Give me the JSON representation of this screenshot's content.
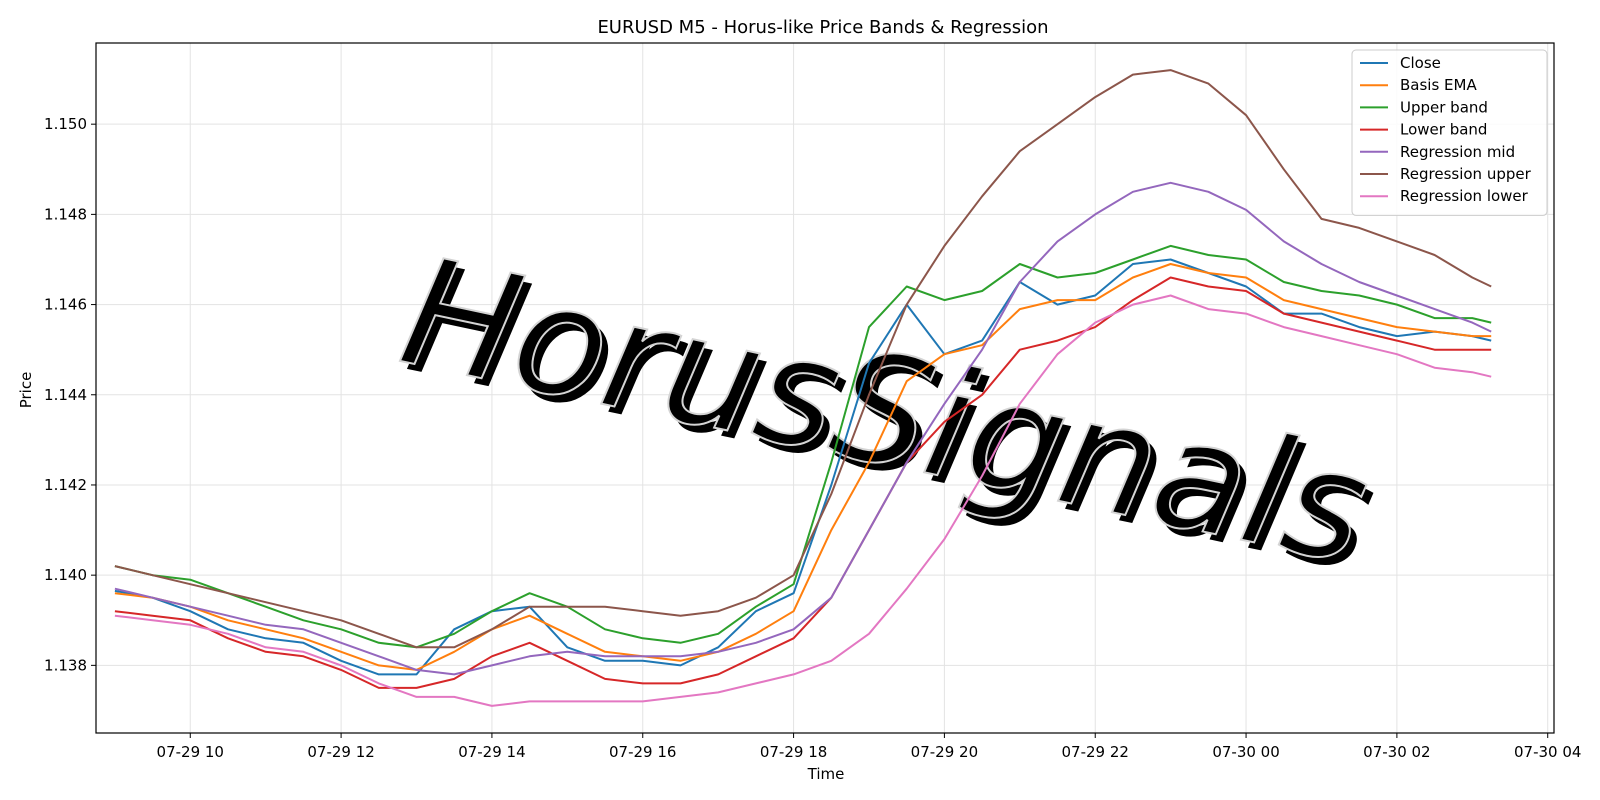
{
  "chart_data": {
    "type": "line",
    "title": "EURUSD M5 - Horus-like Price Bands & Regression",
    "xlabel": "Time",
    "ylabel": "Price",
    "watermark": "HorusSignals",
    "grid": true,
    "legend_position": "top-right",
    "xlim": [
      "07-29 08:45",
      "07-30 04:05"
    ],
    "ylim": [
      1.1365,
      1.1518
    ],
    "x_ticks": [
      "07-29 10",
      "07-29 12",
      "07-29 14",
      "07-29 16",
      "07-29 18",
      "07-29 20",
      "07-29 22",
      "07-30 00",
      "07-30 02",
      "07-30 04"
    ],
    "y_ticks": [
      "1.138",
      "1.140",
      "1.142",
      "1.144",
      "1.146",
      "1.148",
      "1.150"
    ],
    "x": [
      "07-29 09:00",
      "07-29 09:30",
      "07-29 10:00",
      "07-29 10:30",
      "07-29 11:00",
      "07-29 11:30",
      "07-29 12:00",
      "07-29 12:30",
      "07-29 13:00",
      "07-29 13:30",
      "07-29 14:00",
      "07-29 14:30",
      "07-29 15:00",
      "07-29 15:30",
      "07-29 16:00",
      "07-29 16:30",
      "07-29 17:00",
      "07-29 17:30",
      "07-29 18:00",
      "07-29 18:30",
      "07-29 19:00",
      "07-29 19:30",
      "07-29 20:00",
      "07-29 20:30",
      "07-29 21:00",
      "07-29 21:30",
      "07-29 22:00",
      "07-29 22:30",
      "07-29 23:00",
      "07-29 23:30",
      "07-30 00:00",
      "07-30 00:30",
      "07-30 01:00",
      "07-30 01:30",
      "07-30 02:00",
      "07-30 02:30",
      "07-30 03:00",
      "07-30 03:15"
    ],
    "series": [
      {
        "name": "Close",
        "color": "#1f77b4",
        "values": [
          1.13965,
          1.1395,
          1.1392,
          1.1388,
          1.1386,
          1.1385,
          1.1381,
          1.1378,
          1.1378,
          1.1388,
          1.1392,
          1.1393,
          1.1384,
          1.1381,
          1.1381,
          1.138,
          1.1384,
          1.1392,
          1.1396,
          1.142,
          1.1447,
          1.146,
          1.1449,
          1.1452,
          1.1465,
          1.146,
          1.1462,
          1.1469,
          1.147,
          1.1467,
          1.1464,
          1.1458,
          1.1458,
          1.1455,
          1.1453,
          1.1454,
          1.1453,
          1.1452
        ]
      },
      {
        "name": "Basis EMA",
        "color": "#ff7f0e",
        "values": [
          1.1396,
          1.1395,
          1.1393,
          1.139,
          1.1388,
          1.1386,
          1.1383,
          1.138,
          1.1379,
          1.1383,
          1.1388,
          1.1391,
          1.1387,
          1.1383,
          1.1382,
          1.1381,
          1.1383,
          1.1387,
          1.1392,
          1.141,
          1.1425,
          1.1443,
          1.1449,
          1.1451,
          1.1459,
          1.1461,
          1.1461,
          1.1466,
          1.1469,
          1.1467,
          1.1466,
          1.1461,
          1.1459,
          1.1457,
          1.1455,
          1.1454,
          1.1453,
          1.1453
        ]
      },
      {
        "name": "Upper band",
        "color": "#2ca02c",
        "values": [
          1.1402,
          1.14,
          1.1399,
          1.1396,
          1.1393,
          1.139,
          1.1388,
          1.1385,
          1.1384,
          1.1387,
          1.1392,
          1.1396,
          1.1393,
          1.1388,
          1.1386,
          1.1385,
          1.1387,
          1.1393,
          1.1398,
          1.1425,
          1.1455,
          1.1464,
          1.1461,
          1.1463,
          1.1469,
          1.1466,
          1.1467,
          1.147,
          1.1473,
          1.1471,
          1.147,
          1.1465,
          1.1463,
          1.1462,
          1.146,
          1.1457,
          1.1457,
          1.1456
        ]
      },
      {
        "name": "Lower band",
        "color": "#d62728",
        "values": [
          1.1392,
          1.1391,
          1.139,
          1.1386,
          1.1383,
          1.1382,
          1.1379,
          1.1375,
          1.1375,
          1.1377,
          1.1382,
          1.1385,
          1.1381,
          1.1377,
          1.1376,
          1.1376,
          1.1378,
          1.1382,
          1.1386,
          1.1395,
          1.141,
          1.1425,
          1.1434,
          1.144,
          1.145,
          1.1452,
          1.1455,
          1.1461,
          1.1466,
          1.1464,
          1.1463,
          1.1458,
          1.1456,
          1.1454,
          1.1452,
          1.145,
          1.145,
          1.145
        ]
      },
      {
        "name": "Regression mid",
        "color": "#9467bd",
        "values": [
          1.1397,
          1.1395,
          1.1393,
          1.1391,
          1.1389,
          1.1388,
          1.1385,
          1.1382,
          1.1379,
          1.1378,
          1.138,
          1.1382,
          1.1383,
          1.1382,
          1.1382,
          1.1382,
          1.1383,
          1.1385,
          1.1388,
          1.1395,
          1.141,
          1.1425,
          1.1438,
          1.145,
          1.1465,
          1.1474,
          1.148,
          1.1485,
          1.1487,
          1.1485,
          1.1481,
          1.1474,
          1.1469,
          1.1465,
          1.1462,
          1.1459,
          1.1456,
          1.1454
        ]
      },
      {
        "name": "Regression upper",
        "color": "#8c564b",
        "values": [
          1.1402,
          1.14,
          1.1398,
          1.1396,
          1.1394,
          1.1392,
          1.139,
          1.1387,
          1.1384,
          1.1384,
          1.1388,
          1.1393,
          1.1393,
          1.1393,
          1.1392,
          1.1391,
          1.1392,
          1.1395,
          1.14,
          1.1418,
          1.144,
          1.146,
          1.1473,
          1.1484,
          1.1494,
          1.15,
          1.1506,
          1.1511,
          1.1512,
          1.1509,
          1.1502,
          1.149,
          1.1479,
          1.1477,
          1.1474,
          1.1471,
          1.1466,
          1.1464
        ]
      },
      {
        "name": "Regression lower",
        "color": "#e377c2",
        "values": [
          1.1391,
          1.139,
          1.1389,
          1.1387,
          1.1384,
          1.1383,
          1.138,
          1.1376,
          1.1373,
          1.1373,
          1.1371,
          1.1372,
          1.1372,
          1.1372,
          1.1372,
          1.1373,
          1.1374,
          1.1376,
          1.1378,
          1.1381,
          1.1387,
          1.1397,
          1.1408,
          1.1422,
          1.1438,
          1.1449,
          1.1456,
          1.146,
          1.1462,
          1.1459,
          1.1458,
          1.1455,
          1.1453,
          1.1451,
          1.1449,
          1.1446,
          1.1445,
          1.1444
        ]
      }
    ]
  }
}
